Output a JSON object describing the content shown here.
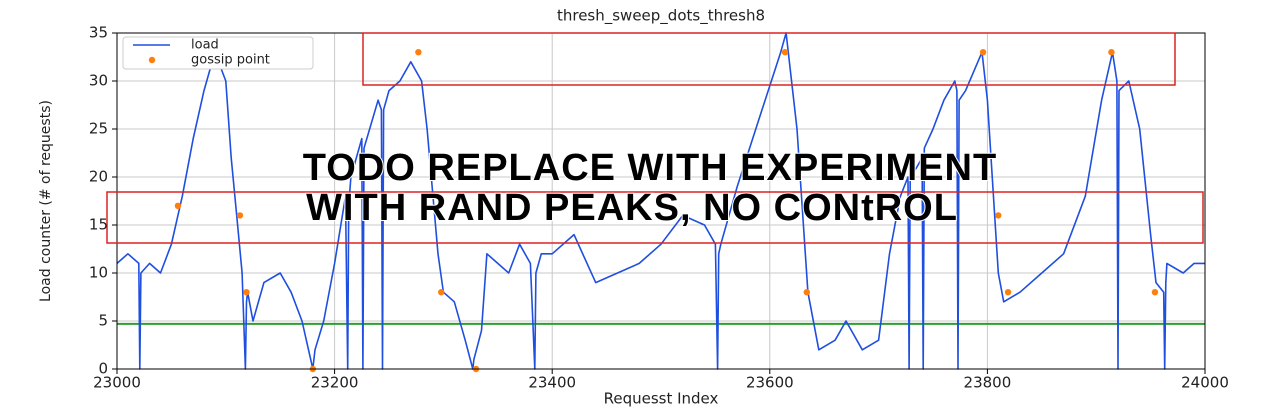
{
  "chart_data": {
    "type": "line",
    "title": "thresh_sweep_dots_thresh8",
    "x_label": "Requesst Index",
    "y_label": "Load counter (# of requests)",
    "xlim": [
      23000,
      24000
    ],
    "xticks": [
      23000,
      23200,
      23400,
      23600,
      23800,
      24000
    ],
    "ylim": [
      0,
      35
    ],
    "yticks": [
      0,
      5,
      10,
      15,
      20,
      25,
      30,
      35
    ],
    "grid": true,
    "legend": "upper left",
    "hline": {
      "value": 4.7,
      "color": "#2ca02c"
    },
    "annotation": [
      "TODO REPLACE WITH EXPERIMENT",
      "WITH RAND PEAKS, NO CONtROL"
    ],
    "series": [
      {
        "name": "load",
        "type": "line",
        "color": "#1f4fe0",
        "x": [
          23000,
          23010,
          23020,
          23021,
          23022,
          23030,
          23040,
          23050,
          23060,
          23070,
          23080,
          23090,
          23100,
          23105,
          23110,
          23115,
          23118,
          23119,
          23120,
          23125,
          23135,
          23150,
          23160,
          23170,
          23178,
          23180,
          23182,
          23190,
          23200,
          23210,
          23212,
          23213,
          23215,
          23225,
          23226,
          23227,
          23240,
          23243,
          23244,
          23245,
          23250,
          23260,
          23270,
          23280,
          23285,
          23295,
          23300,
          23310,
          23320,
          23327,
          23328,
          23335,
          23340,
          23350,
          23360,
          23370,
          23380,
          23384,
          23385,
          23390,
          23400,
          23420,
          23440,
          23460,
          23480,
          23500,
          23520,
          23540,
          23550,
          23552,
          23553,
          23555,
          23570,
          23590,
          23610,
          23615,
          23625,
          23635,
          23645,
          23660,
          23670,
          23685,
          23700,
          23710,
          23720,
          23727,
          23728,
          23729,
          23735,
          23740,
          23741,
          23742,
          23750,
          23760,
          23770,
          23772,
          23773,
          23774,
          23780,
          23795,
          23800,
          23810,
          23815,
          23830,
          23850,
          23870,
          23890,
          23905,
          23915,
          23919,
          23920,
          23921,
          23930,
          23940,
          23950,
          23955,
          23962,
          23963,
          23964,
          23965,
          23980,
          23990,
          24000
        ],
        "values": [
          11,
          12,
          11,
          0,
          10,
          11,
          10,
          13,
          18,
          24,
          29,
          33,
          30,
          22,
          16,
          10,
          0,
          7,
          8,
          5,
          9,
          10,
          8,
          5,
          1,
          0,
          2,
          5,
          11,
          18,
          0,
          17,
          20,
          24,
          0,
          23,
          28,
          27,
          0,
          27,
          29,
          30,
          32,
          30,
          25,
          12,
          8,
          7,
          3,
          0,
          1,
          4,
          12,
          11,
          10,
          13,
          11,
          0,
          10,
          12,
          12,
          14,
          9,
          10,
          11,
          13,
          16,
          15,
          13,
          0,
          12,
          13,
          19,
          26,
          33,
          35,
          25,
          8,
          2,
          3,
          5,
          2,
          3,
          12,
          18,
          20,
          0,
          20,
          21,
          22,
          0,
          23,
          25,
          28,
          30,
          29,
          0,
          28,
          29,
          33,
          28,
          10,
          7,
          8,
          10,
          12,
          18,
          28,
          33,
          30,
          0,
          29,
          30,
          25,
          14,
          9,
          8,
          0,
          9,
          11,
          10,
          11,
          11
        ]
      },
      {
        "name": "gossip point",
        "type": "scatter",
        "color": "#ff7f0e",
        "x": [
          23056,
          23113,
          23119,
          23180,
          23277,
          23298,
          23330,
          23614,
          23634,
          23796,
          23810,
          23819,
          23914,
          23954
        ],
        "values": [
          17,
          16,
          8,
          0,
          33,
          8,
          0,
          33,
          8,
          33,
          16,
          8,
          33,
          8
        ]
      }
    ]
  }
}
